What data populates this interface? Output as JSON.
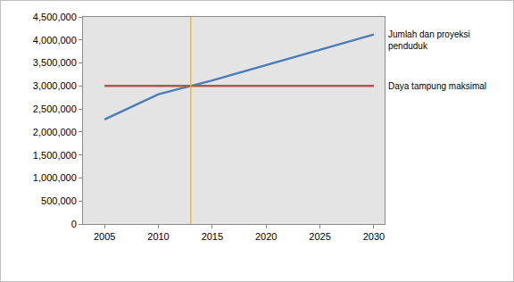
{
  "chart_data": {
    "type": "line",
    "x": [
      2005,
      2010,
      2015,
      2020,
      2025,
      2030
    ],
    "series": [
      {
        "name": "Jumlah dan proyeksi penduduk",
        "color": "#4a7ebb",
        "values": [
          2270000,
          2820000,
          3120000,
          3450000,
          3780000,
          4120000
        ]
      },
      {
        "name": "Daya tampung maksimal",
        "color": "#c0504d",
        "values": [
          3000000,
          3000000,
          3000000,
          3000000,
          3000000,
          3000000
        ]
      }
    ],
    "reference_lines": [
      {
        "x": 2013,
        "color": "#f5c000"
      }
    ],
    "xlim": [
      2003,
      2031
    ],
    "xticks": [
      2005,
      2010,
      2015,
      2020,
      2025,
      2030
    ],
    "ylim": [
      0,
      4500000
    ],
    "yticks": [
      0,
      {
        "value": 500000,
        "label": "500,000"
      },
      {
        "value": 1000000,
        "label": "1,000,000"
      },
      {
        "value": 1500000,
        "label": "1,500,000"
      },
      {
        "value": 2000000,
        "label": "2,000,000"
      },
      {
        "value": 2500000,
        "label": "2,500,000"
      },
      {
        "value": 3000000,
        "label": "3,000,000"
      },
      {
        "value": 3500000,
        "label": "3,500,000"
      },
      {
        "value": 4000000,
        "label": "4,000,000"
      },
      {
        "value": 4500000,
        "label": "4,500,000"
      }
    ],
    "grid": false
  }
}
